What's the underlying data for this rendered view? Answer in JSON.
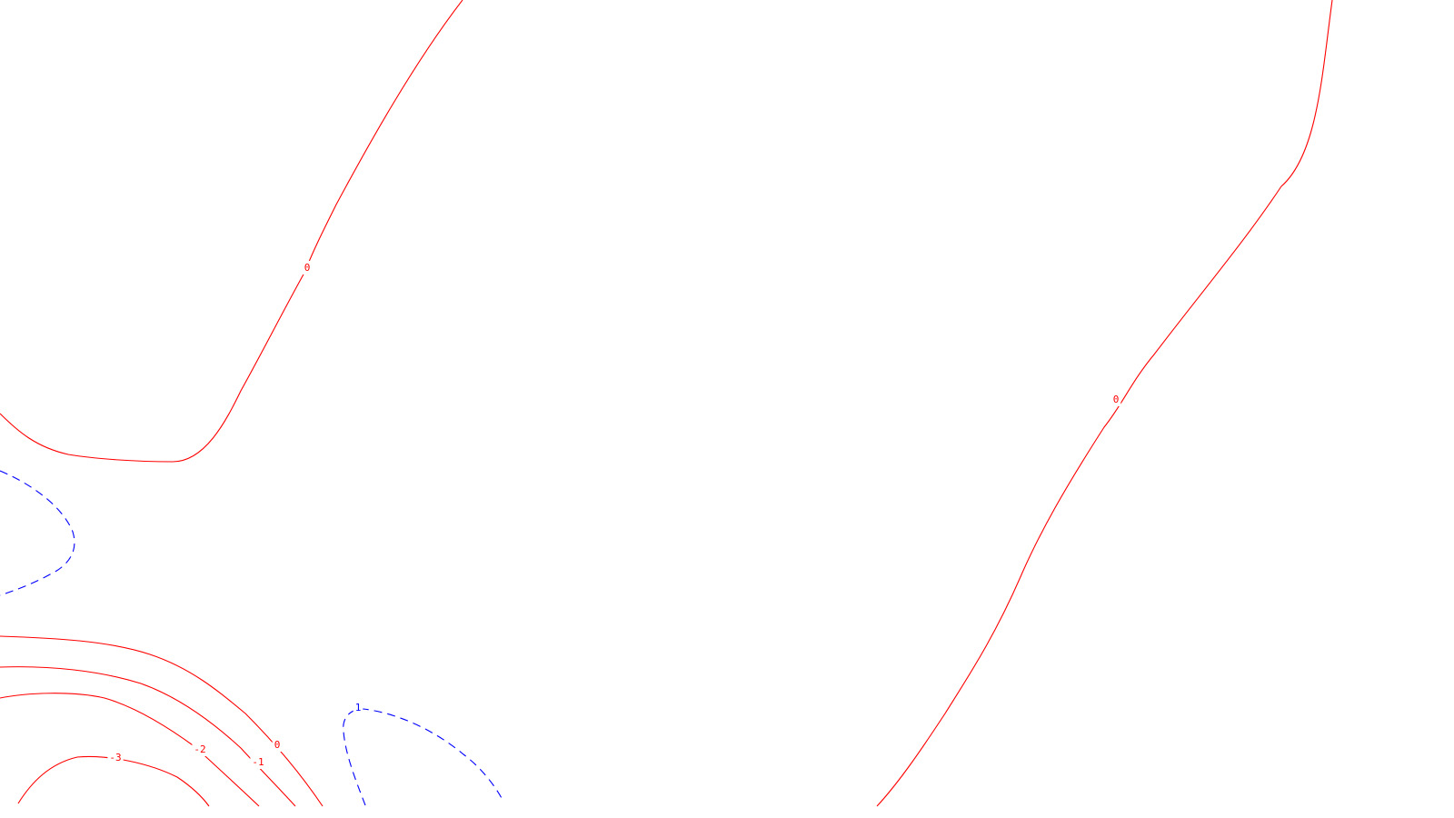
{
  "diagram": {
    "type": "contour-plot",
    "colors": {
      "background": "#ffffff",
      "negative_and_zero": "#ff0000",
      "positive": "#0000ff"
    },
    "line_styles": {
      "negative_and_zero": "solid",
      "positive": "dashed"
    },
    "contours": [
      {
        "id": "zero-upper-left",
        "level": 0,
        "color": "#ff0000",
        "style": "solid",
        "label": "0"
      },
      {
        "id": "zero-right",
        "level": 0,
        "color": "#ff0000",
        "style": "solid",
        "label": "0"
      },
      {
        "id": "positive-left",
        "level": 1,
        "color": "#0000ff",
        "style": "dashed",
        "label": ""
      },
      {
        "id": "positive-bottom",
        "level": 1,
        "color": "#0000ff",
        "style": "dashed",
        "label": "1"
      },
      {
        "id": "zero-bottom-left",
        "level": 0,
        "color": "#ff0000",
        "style": "solid",
        "label": "0"
      },
      {
        "id": "minus-one",
        "level": -1,
        "color": "#ff0000",
        "style": "solid",
        "label": "-1"
      },
      {
        "id": "minus-two",
        "level": -2,
        "color": "#ff0000",
        "style": "solid",
        "label": "-2"
      },
      {
        "id": "minus-three",
        "level": -3,
        "color": "#ff0000",
        "style": "solid",
        "label": "-3"
      }
    ]
  }
}
